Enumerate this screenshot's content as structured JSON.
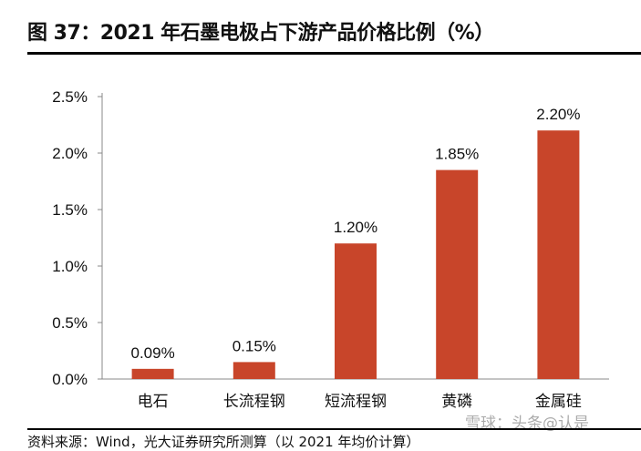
{
  "title": "图 37：2021 年石墨电极占下游产品价格比例（%）",
  "source": "资料来源：Wind，光大证券研究所测算（以 2021 年均价计算）",
  "watermark": "雪球：头条@认是",
  "chart_data": {
    "type": "bar",
    "categories": [
      "电石",
      "长流程钢",
      "短流程钢",
      "黄磷",
      "金属硅"
    ],
    "values": [
      0.09,
      0.15,
      1.2,
      1.85,
      2.2
    ],
    "data_labels": [
      "0.09%",
      "0.15%",
      "1.20%",
      "1.85%",
      "2.20%"
    ],
    "ylim": [
      0,
      2.5
    ],
    "yticks": [
      0,
      0.5,
      1.0,
      1.5,
      2.0,
      2.5
    ],
    "ytick_labels": [
      "0.0%",
      "0.5%",
      "1.0%",
      "1.5%",
      "2.0%",
      "2.5%"
    ],
    "grid": false,
    "bar_color": "#C8452A"
  }
}
